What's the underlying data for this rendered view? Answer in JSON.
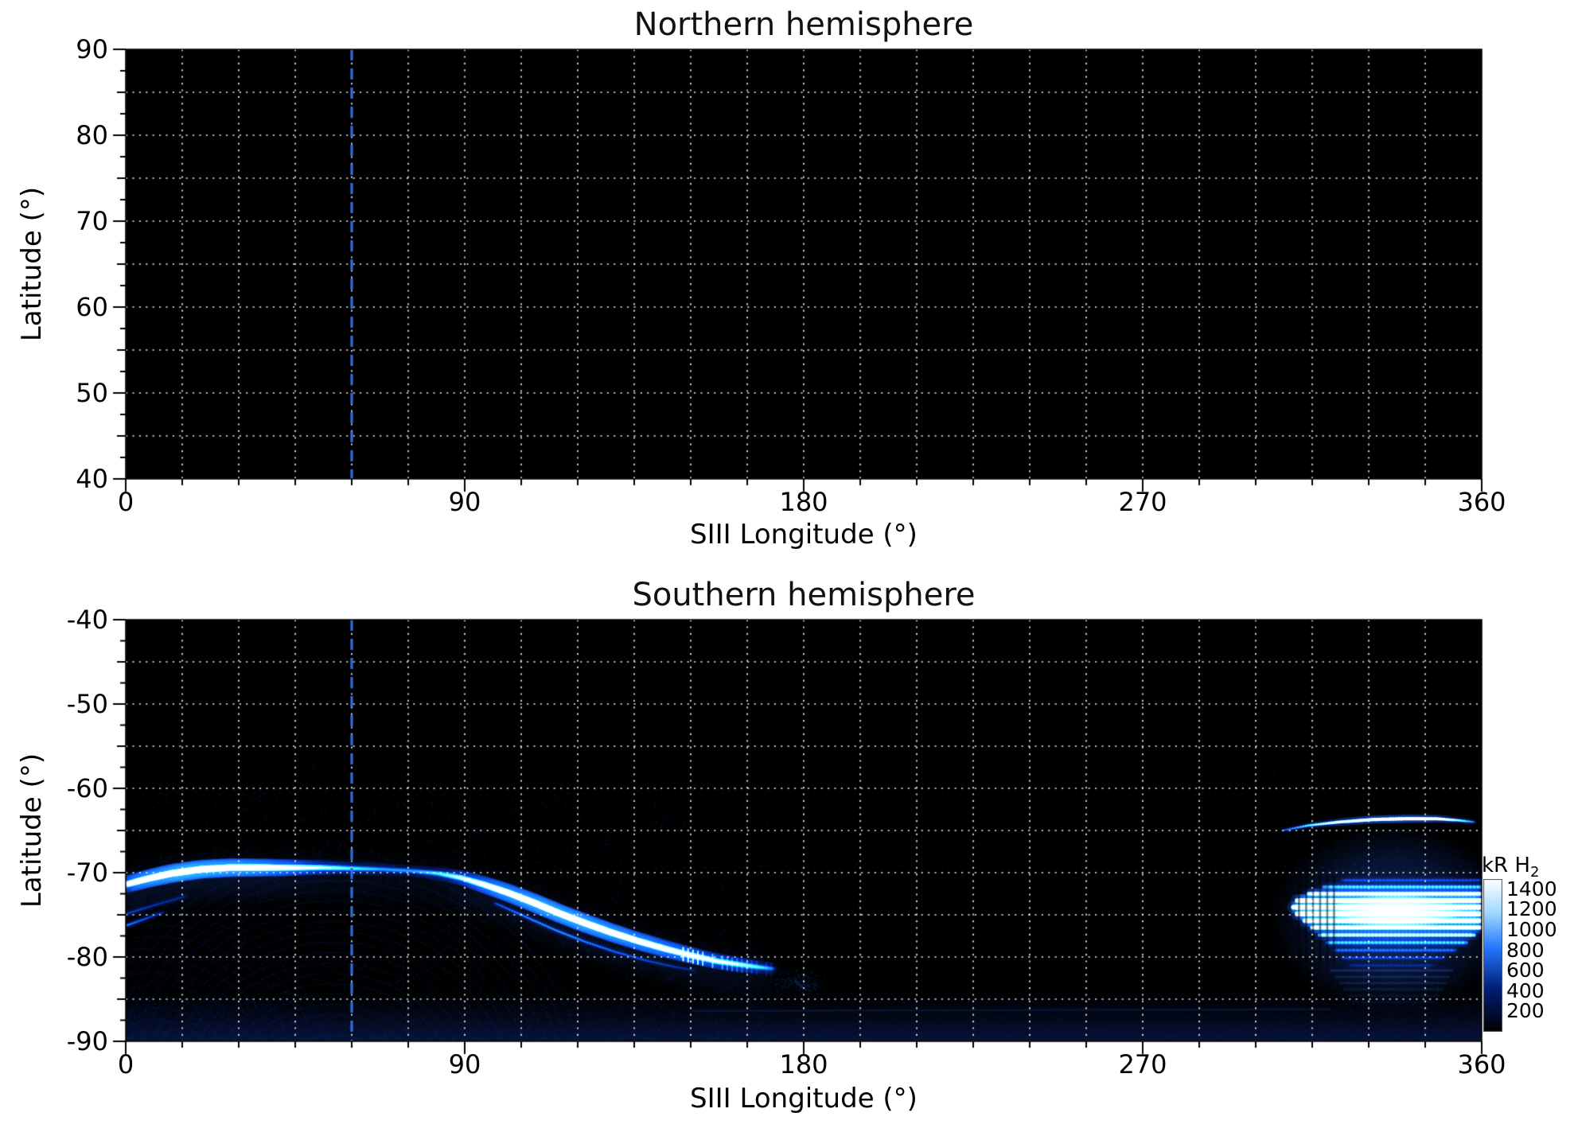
{
  "figure": {
    "background_color": "#ffffff",
    "plot_background_color": "#000000",
    "grid_color": "#ffffff",
    "grid_style": "dotted",
    "accent_dashed_line_color": "#2e6fdb",
    "marker_longitude": 60,
    "colormap_stops": [
      "#000000",
      "#001c73",
      "#2277ff",
      "#9fd8ff",
      "#ffffff"
    ]
  },
  "chart_data": [
    {
      "type": "heatmap",
      "title": "Northern hemisphere",
      "xlabel": "SIII Longitude (°)",
      "ylabel": "Latitude (°)",
      "xlim": [
        0,
        360
      ],
      "ylim": [
        40,
        90
      ],
      "xticks": [
        0,
        90,
        180,
        270,
        360
      ],
      "yticks": [
        90,
        80,
        70,
        60,
        50,
        40
      ],
      "grid": {
        "style": "dotted",
        "x_step": 15,
        "y_step": 5
      },
      "marker_longitude": 60,
      "series": [],
      "note": "no auroral emission visible; plot area entirely black"
    },
    {
      "type": "heatmap",
      "title": "Southern hemisphere",
      "xlabel": "SIII Longitude (°)",
      "ylabel": "Latitude (°)",
      "xlim": [
        0,
        360
      ],
      "ylim": [
        -90,
        -40
      ],
      "xticks": [
        0,
        90,
        180,
        270,
        360
      ],
      "yticks": [
        -40,
        -50,
        -60,
        -70,
        -80,
        -90
      ],
      "grid": {
        "style": "dotted",
        "x_step": 15,
        "y_step": 5
      },
      "marker_longitude": 60,
      "colorbar": {
        "label": "kR H",
        "label_sub": "2",
        "min": 0,
        "max": 1500,
        "ticks": [
          1400,
          1200,
          1000,
          800,
          600,
          400,
          200
        ]
      },
      "series": [
        {
          "name": "main-auroral-oval",
          "unit": "kR",
          "points": [
            [
              0,
              -71.4,
              1300
            ],
            [
              6,
              -70.7,
              1420
            ],
            [
              12,
              -70.1,
              1500
            ],
            [
              20,
              -69.6,
              1500
            ],
            [
              28,
              -69.4,
              1460
            ],
            [
              36,
              -69.4,
              1380
            ],
            [
              44,
              -69.4,
              1220
            ],
            [
              52,
              -69.4,
              1000
            ],
            [
              60,
              -69.5,
              780
            ],
            [
              68,
              -69.6,
              640
            ],
            [
              76,
              -69.8,
              620
            ],
            [
              83,
              -70.1,
              780
            ],
            [
              89,
              -70.6,
              1050
            ],
            [
              95,
              -71.4,
              1280
            ],
            [
              101,
              -72.3,
              1420
            ],
            [
              108,
              -73.5,
              1500
            ],
            [
              115,
              -74.8,
              1500
            ],
            [
              122,
              -76.0,
              1500
            ],
            [
              129,
              -77.1,
              1460
            ],
            [
              136,
              -78.1,
              1400
            ],
            [
              143,
              -79.0,
              1330
            ],
            [
              150,
              -79.8,
              1240
            ],
            [
              157,
              -80.5,
              1120
            ],
            [
              163,
              -80.9,
              980
            ],
            [
              168,
              -81.2,
              800
            ],
            [
              172,
              -81.4,
              560
            ]
          ]
        },
        {
          "name": "poleward-parallel-arc",
          "unit": "kR",
          "points": [
            [
              98,
              -73.6,
              520
            ],
            [
              106,
              -75.2,
              620
            ],
            [
              114,
              -76.8,
              660
            ],
            [
              122,
              -78.2,
              620
            ],
            [
              130,
              -79.4,
              560
            ],
            [
              138,
              -80.4,
              500
            ],
            [
              145,
              -81.1,
              420
            ],
            [
              151,
              -81.6,
              330
            ]
          ]
        },
        {
          "name": "left-edge-strand-a",
          "unit": "kR",
          "points": [
            [
              0,
              -74.9,
              520
            ],
            [
              8,
              -73.8,
              450
            ],
            [
              16,
              -72.8,
              350
            ]
          ]
        },
        {
          "name": "left-edge-strand-b",
          "unit": "kR",
          "points": [
            [
              0,
              -76.3,
              680
            ],
            [
              5,
              -75.5,
              560
            ],
            [
              10,
              -74.7,
              400
            ]
          ]
        },
        {
          "name": "high-latitude-thin-arc",
          "unit": "kR",
          "points": [
            [
              307,
              -65.0,
              520
            ],
            [
              314,
              -64.4,
              900
            ],
            [
              322,
              -64.0,
              1250
            ],
            [
              331,
              -63.7,
              1450
            ],
            [
              340,
              -63.6,
              1480
            ],
            [
              348,
              -63.6,
              1350
            ],
            [
              354,
              -63.8,
              1000
            ],
            [
              358,
              -64.0,
              650
            ]
          ]
        },
        {
          "name": "dusk-bright-bands",
          "unit": "kR",
          "bands": [
            [
              323,
              360,
              -70.9,
              480
            ],
            [
              318,
              360,
              -71.7,
              820
            ],
            [
              314,
              360,
              -72.5,
              1200
            ],
            [
              311,
              360,
              -73.3,
              1480
            ],
            [
              310,
              360,
              -74.1,
              1500
            ],
            [
              311,
              360,
              -74.9,
              1500
            ],
            [
              313,
              360,
              -75.7,
              1420
            ],
            [
              315,
              360,
              -76.5,
              1280
            ],
            [
              317,
              358,
              -77.4,
              1050
            ],
            [
              319,
              356,
              -78.3,
              800
            ],
            [
              321,
              353,
              -79.2,
              560
            ],
            [
              323,
              350,
              -80.1,
              400
            ],
            [
              325,
              347,
              -81.0,
              280
            ]
          ]
        }
      ],
      "diffuse": {
        "wedge_center_lon": 57,
        "speck_cluster": {
          "lon": 179,
          "lat": -83
        },
        "bottom_band_start_lat": -84.5,
        "dusk_glow_center": {
          "lon": 336,
          "lat": -75.4
        },
        "fray": {
          "lon_start": 148,
          "lon_end": 172
        }
      }
    }
  ]
}
